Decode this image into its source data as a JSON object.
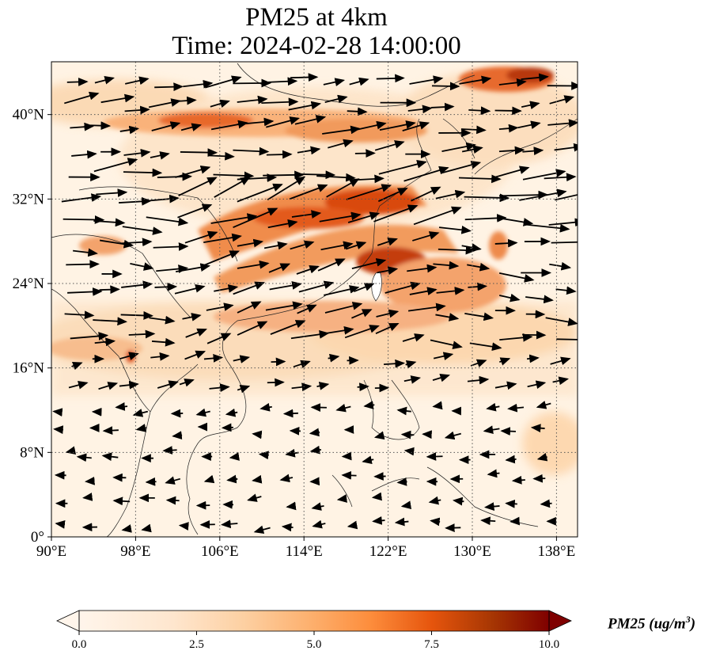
{
  "title": {
    "line1": "PM25 at 4km",
    "line2": "Time: 2024-02-28 14:00:00"
  },
  "map": {
    "lon_range": [
      90,
      140
    ],
    "lat_range": [
      0,
      45
    ],
    "lon_ticks": [
      {
        "value": 90,
        "label": "90°E"
      },
      {
        "value": 98,
        "label": "98°E"
      },
      {
        "value": 106,
        "label": "106°E"
      },
      {
        "value": 114,
        "label": "114°E"
      },
      {
        "value": 122,
        "label": "122°E"
      },
      {
        "value": 130,
        "label": "130°E"
      },
      {
        "value": 138,
        "label": "138°E"
      }
    ],
    "lat_ticks": [
      {
        "value": 0,
        "label": "0°"
      },
      {
        "value": 8,
        "label": "8°N"
      },
      {
        "value": 16,
        "label": "16°N"
      },
      {
        "value": 24,
        "label": "24°N"
      },
      {
        "value": 32,
        "label": "32°N"
      },
      {
        "value": 40,
        "label": "40°N"
      }
    ],
    "gridlines": true,
    "wind_vectors": "black arrows, westerly flow in north, weaker easterly flow in south",
    "plume_colors": [
      "#fff5eb",
      "#fdd0a2",
      "#fd8d3c",
      "#d94801",
      "#7f2704"
    ]
  },
  "colorbar": {
    "min": 0.0,
    "max": 10.0,
    "ticks": [
      "0.0",
      "2.5",
      "5.0",
      "7.5",
      "10.0"
    ],
    "label": "PM25 (ug/m",
    "label_exp": "3",
    "label_end": ")",
    "extend": "both"
  }
}
